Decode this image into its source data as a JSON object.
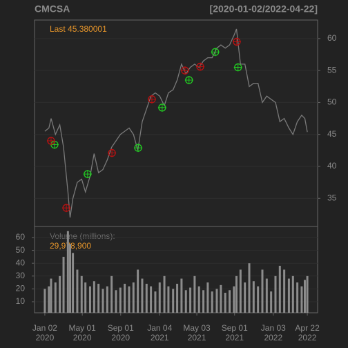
{
  "chart_data": [
    {
      "type": "line",
      "title": "CMCSA",
      "subtitle": "[2020-01-02/2022-04-22]",
      "annotation": "Last 45.380001",
      "x": [
        "2020-01-02",
        "2020-01-15",
        "2020-01-22",
        "2020-02-05",
        "2020-02-19",
        "2020-03-02",
        "2020-03-16",
        "2020-03-23",
        "2020-04-01",
        "2020-04-15",
        "2020-04-29",
        "2020-05-11",
        "2020-05-26",
        "2020-06-08",
        "2020-06-22",
        "2020-07-06",
        "2020-07-20",
        "2020-08-03",
        "2020-08-17",
        "2020-08-31",
        "2020-09-14",
        "2020-09-28",
        "2020-10-12",
        "2020-10-26",
        "2020-11-09",
        "2020-11-23",
        "2020-12-07",
        "2020-12-21",
        "2021-01-04",
        "2021-01-19",
        "2021-02-01",
        "2021-02-16",
        "2021-03-01",
        "2021-03-15",
        "2021-03-29",
        "2021-04-12",
        "2021-04-26",
        "2021-05-10",
        "2021-05-24",
        "2021-06-07",
        "2021-06-21",
        "2021-07-06",
        "2021-07-19",
        "2021-08-02",
        "2021-08-16",
        "2021-08-30",
        "2021-09-07",
        "2021-09-20",
        "2021-10-04",
        "2021-10-18",
        "2021-11-01",
        "2021-11-15",
        "2021-11-29",
        "2021-12-13",
        "2021-12-27",
        "2022-01-10",
        "2022-01-24",
        "2022-02-07",
        "2022-02-22",
        "2022-03-07",
        "2022-03-21",
        "2022-04-04",
        "2022-04-14",
        "2022-04-22"
      ],
      "values": [
        45.5,
        46,
        47.5,
        45,
        46.5,
        43,
        36,
        32,
        35,
        37.5,
        38,
        36,
        38.5,
        42,
        39,
        39.5,
        41,
        43,
        44,
        45,
        45.5,
        46,
        45,
        42.5,
        47,
        49,
        51,
        51.5,
        51,
        49.5,
        51.5,
        52,
        53.5,
        56,
        54.5,
        55.5,
        56,
        55.5,
        56.5,
        57,
        57,
        58.5,
        59,
        58.5,
        59,
        60.5,
        61.5,
        56,
        56,
        52.5,
        53,
        53,
        50,
        51,
        50.5,
        50,
        47,
        47.5,
        46,
        45,
        47,
        48,
        47.5,
        45.38
      ],
      "color": "#7a7a7a",
      "xlim": [
        "2019-11-30",
        "2022-05-25"
      ],
      "ylim": [
        30.6,
        62.9
      ],
      "yticks": [
        35,
        40,
        45,
        50,
        55,
        60
      ],
      "grid": true,
      "buy_signals": {
        "color": "#22cc22",
        "x": [
          "2020-02-02",
          "2020-05-18",
          "2020-10-27",
          "2021-01-12",
          "2021-04-08",
          "2021-07-01",
          "2021-09-12"
        ],
        "values": [
          43.4,
          38.8,
          42.9,
          49.2,
          53.5,
          57.9,
          55.5
        ]
      },
      "sell_signals": {
        "color": "#bb1111",
        "x": [
          "2020-01-22",
          "2020-03-11",
          "2020-08-04",
          "2020-12-10",
          "2021-03-26",
          "2021-05-14",
          "2021-09-08"
        ],
        "values": [
          44.0,
          33.5,
          42.1,
          50.5,
          55.0,
          55.6,
          59.5
        ]
      }
    },
    {
      "type": "bar",
      "title": "Volume (millions):",
      "annotation": "29,978,900",
      "x": [
        "2020-01-02",
        "2020-01-15",
        "2020-01-22",
        "2020-02-05",
        "2020-02-19",
        "2020-03-02",
        "2020-03-16",
        "2020-03-23",
        "2020-04-01",
        "2020-04-15",
        "2020-04-29",
        "2020-05-11",
        "2020-05-26",
        "2020-06-08",
        "2020-06-22",
        "2020-07-06",
        "2020-07-20",
        "2020-08-03",
        "2020-08-17",
        "2020-08-31",
        "2020-09-14",
        "2020-09-28",
        "2020-10-12",
        "2020-10-26",
        "2020-11-09",
        "2020-11-23",
        "2020-12-07",
        "2020-12-21",
        "2021-01-04",
        "2021-01-19",
        "2021-02-01",
        "2021-02-16",
        "2021-03-01",
        "2021-03-15",
        "2021-03-29",
        "2021-04-12",
        "2021-04-26",
        "2021-05-10",
        "2021-05-24",
        "2021-06-07",
        "2021-06-21",
        "2021-07-06",
        "2021-07-19",
        "2021-08-02",
        "2021-08-16",
        "2021-08-30",
        "2021-09-07",
        "2021-09-20",
        "2021-10-04",
        "2021-10-18",
        "2021-11-01",
        "2021-11-15",
        "2021-11-29",
        "2021-12-13",
        "2021-12-27",
        "2022-01-10",
        "2022-01-24",
        "2022-02-07",
        "2022-02-22",
        "2022-03-07",
        "2022-03-21",
        "2022-04-04",
        "2022-04-14",
        "2022-04-22"
      ],
      "values": [
        20,
        22,
        28,
        25,
        30,
        45,
        65,
        55,
        48,
        35,
        30,
        25,
        22,
        26,
        24,
        20,
        22,
        30,
        19,
        21,
        24,
        22,
        25,
        35,
        28,
        24,
        22,
        18,
        25,
        30,
        22,
        20,
        24,
        28,
        19,
        21,
        30,
        22,
        19,
        25,
        18,
        20,
        23,
        17,
        19,
        22,
        30,
        35,
        25,
        40,
        26,
        22,
        35,
        28,
        18,
        30,
        38,
        35,
        28,
        30,
        25,
        22,
        27,
        29.98
      ],
      "color": "#8c8c8c",
      "xlim": [
        "2019-11-30",
        "2022-05-25"
      ],
      "ylim": [
        1.4,
        68.6
      ],
      "yticks": [
        10,
        20,
        30,
        40,
        50,
        60
      ],
      "xticks": [
        {
          "value": "2020-01-02",
          "label": [
            "Jan 02",
            "2020"
          ]
        },
        {
          "value": "2020-05-01",
          "label": [
            "May 01",
            "2020"
          ]
        },
        {
          "value": "2020-09-01",
          "label": [
            "Sep 01",
            "2020"
          ]
        },
        {
          "value": "2021-01-04",
          "label": [
            "Jan 04",
            "2021"
          ]
        },
        {
          "value": "2021-05-03",
          "label": [
            "May 03",
            "2021"
          ]
        },
        {
          "value": "2021-09-01",
          "label": [
            "Sep 01",
            "2021"
          ]
        },
        {
          "value": "2022-01-03",
          "label": [
            "Jan 03",
            "2022"
          ]
        },
        {
          "value": "2022-04-22",
          "label": [
            "Apr 22",
            "2022"
          ]
        }
      ]
    }
  ]
}
